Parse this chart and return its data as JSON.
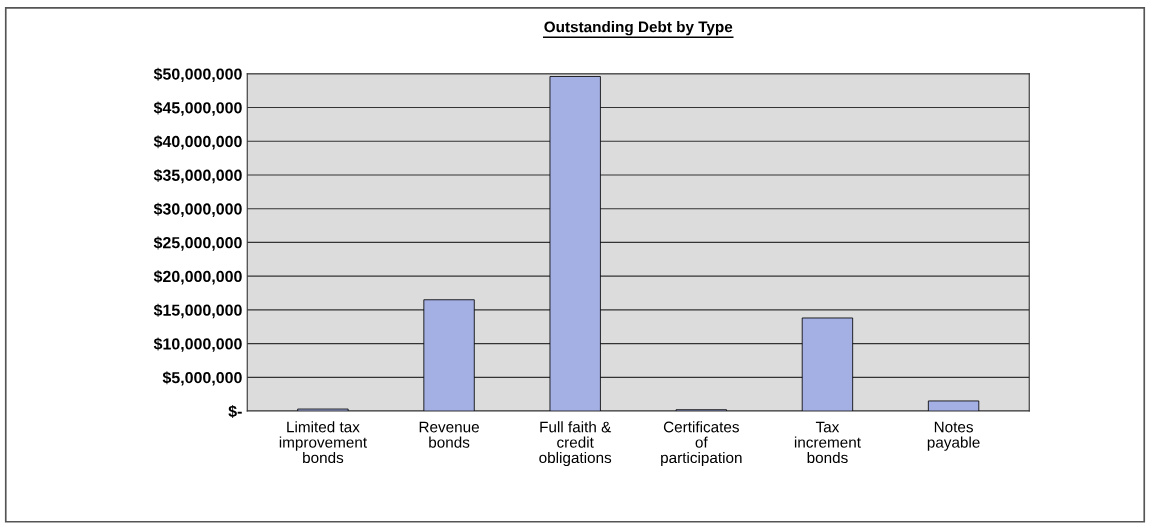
{
  "chart_data": {
    "type": "bar",
    "title": "Outstanding Debt by Type",
    "categories": [
      "Limited tax improvement bonds",
      "Revenue bonds",
      "Full faith & credit obligations",
      "Certificates of participation",
      "Tax increment bonds",
      "Notes payable"
    ],
    "values": [
      300000,
      16500000,
      49600000,
      200000,
      13800000,
      1500000
    ],
    "color": "#a4afe3",
    "ylim": [
      0,
      50000000
    ],
    "yticks": [
      {
        "value": 0,
        "label": "$-"
      },
      {
        "value": 5000000,
        "label": "$5,000,000"
      },
      {
        "value": 10000000,
        "label": "$10,000,000"
      },
      {
        "value": 15000000,
        "label": "$15,000,000"
      },
      {
        "value": 20000000,
        "label": "$20,000,000"
      },
      {
        "value": 25000000,
        "label": "$25,000,000"
      },
      {
        "value": 30000000,
        "label": "$30,000,000"
      },
      {
        "value": 35000000,
        "label": "$35,000,000"
      },
      {
        "value": 40000000,
        "label": "$40,000,000"
      },
      {
        "value": 45000000,
        "label": "$45,000,000"
      },
      {
        "value": 50000000,
        "label": "$50,000,000"
      }
    ],
    "grid": "y"
  }
}
